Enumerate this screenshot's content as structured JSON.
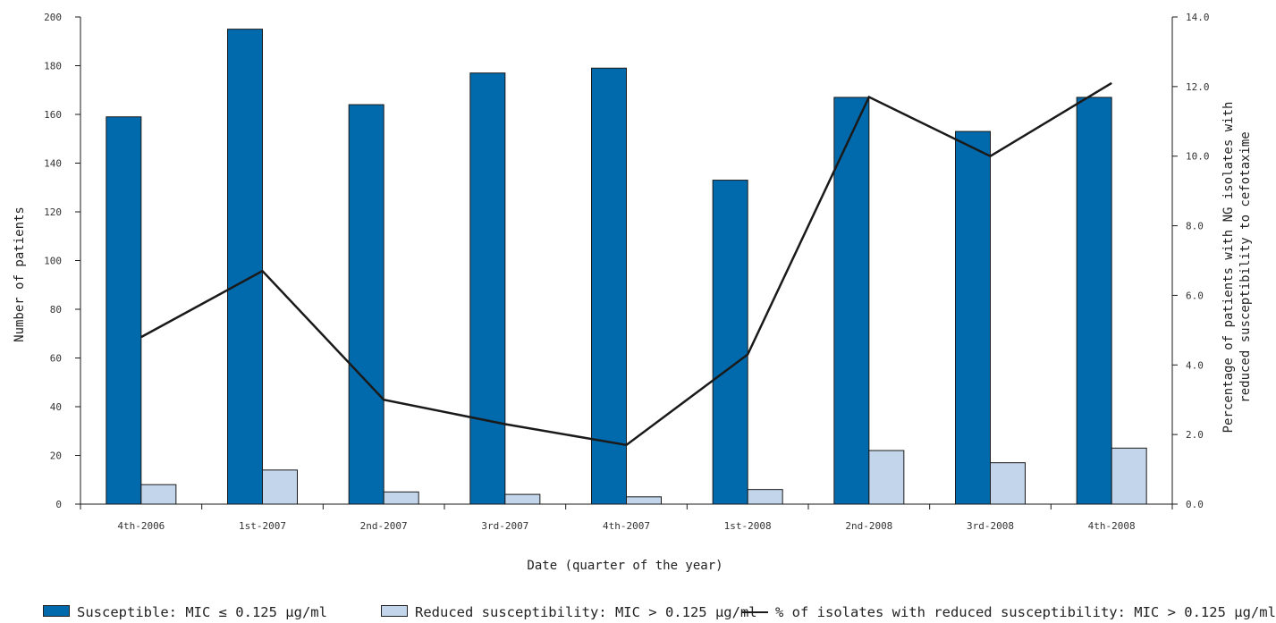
{
  "chart_data": {
    "type": "bar",
    "categories": [
      "4th-2006",
      "1st-2007",
      "2nd-2007",
      "3rd-2007",
      "4th-2007",
      "1st-2008",
      "2nd-2008",
      "3rd-2008",
      "4th-2008"
    ],
    "series": [
      {
        "name": "Susceptible: MIC ≤ 0.125 µg/ml",
        "type": "bar",
        "axis": "left",
        "color": "#006aad",
        "values": [
          159,
          195,
          164,
          177,
          179,
          133,
          167,
          153,
          167
        ]
      },
      {
        "name": "Reduced susceptibility: MIC > 0.125 µg/ml",
        "type": "bar",
        "axis": "left",
        "color": "#c2d5ea",
        "values": [
          8,
          14,
          5,
          4,
          3,
          6,
          22,
          17,
          23
        ]
      },
      {
        "name": "% of isolates with reduced susceptibility: MIC > 0.125 µg/ml",
        "type": "line",
        "axis": "right",
        "color": "#1a1a1a",
        "values": [
          4.8,
          6.7,
          3.0,
          2.3,
          1.7,
          4.3,
          11.7,
          10.0,
          12.1
        ]
      }
    ],
    "xlabel": "Date (quarter of the year)",
    "ylabel": "Number of patients",
    "y2label_line1": "Percentage of patients with NG isolates with",
    "y2label_line2": "reduced susceptibility to cefotaxime",
    "ylim": [
      0,
      200
    ],
    "y2lim": [
      0,
      14
    ],
    "yticks": [
      "0",
      "20",
      "40",
      "60",
      "80",
      "100",
      "120",
      "140",
      "160",
      "180",
      "200"
    ],
    "y2ticks": [
      "0.0",
      "2.0",
      "4.0",
      "6.0",
      "8.0",
      "10.0",
      "12.0",
      "14.0"
    ],
    "grid": false,
    "legend_position": "bottom"
  }
}
